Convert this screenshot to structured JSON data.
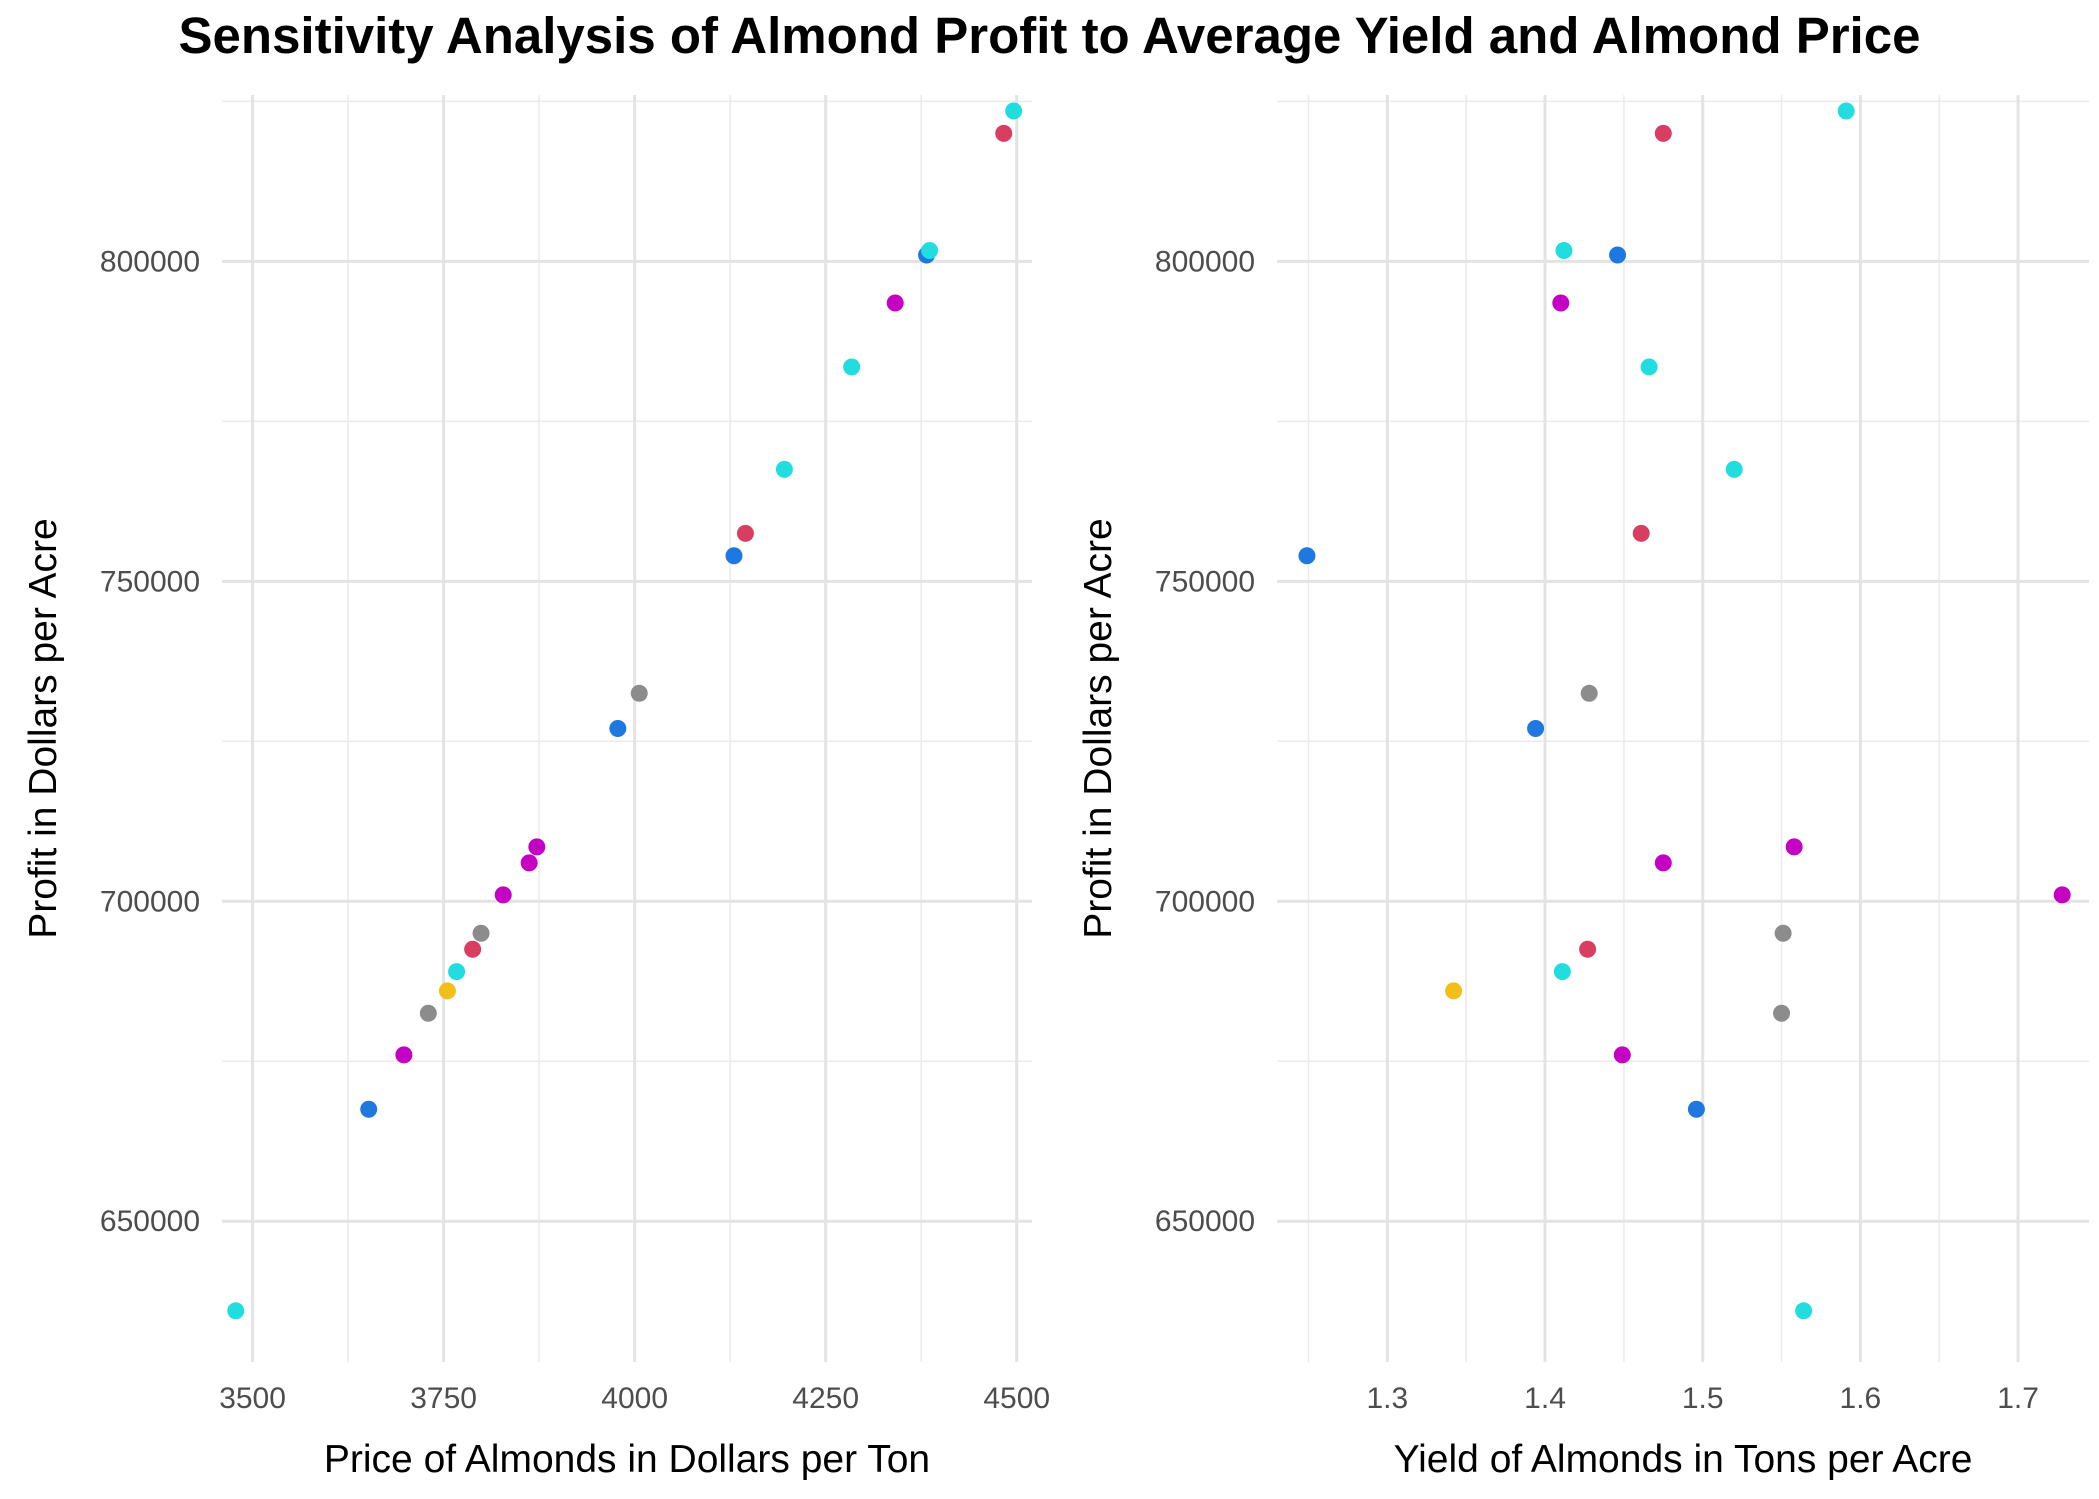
{
  "title": "Sensitivity Analysis of Almond Profit to Average Yield and Almond Price",
  "chart_data": [
    {
      "type": "scatter",
      "panel": "left",
      "xlabel": "Price of Almonds in Dollars per Ton",
      "ylabel": "Profit in Dollars per Acre",
      "xlim": [
        3460,
        4520
      ],
      "ylim": [
        628000,
        826000
      ],
      "xticks": [
        3500,
        3750,
        4000,
        4250,
        4500
      ],
      "yticks": [
        650000,
        700000,
        750000,
        800000
      ],
      "xtick_labels": [
        "3500",
        "3750",
        "4000",
        "4250",
        "4500"
      ],
      "ytick_labels": [
        "650000",
        "700000",
        "750000",
        "800000"
      ],
      "grid": true,
      "legend": "none",
      "points": [
        {
          "x": 3478,
          "y": 636000,
          "color": "#22dde0"
        },
        {
          "x": 3652,
          "y": 667500,
          "color": "#1f78e0"
        },
        {
          "x": 3698,
          "y": 676000,
          "color": "#c400c2"
        },
        {
          "x": 3730,
          "y": 682500,
          "color": "#8c8c8c"
        },
        {
          "x": 3755,
          "y": 686000,
          "color": "#f2be1a"
        },
        {
          "x": 3767,
          "y": 689000,
          "color": "#22dde0"
        },
        {
          "x": 3788,
          "y": 692500,
          "color": "#d83d62"
        },
        {
          "x": 3799,
          "y": 695000,
          "color": "#8c8c8c"
        },
        {
          "x": 3828,
          "y": 701000,
          "color": "#c400c2"
        },
        {
          "x": 3862,
          "y": 706000,
          "color": "#c400c2"
        },
        {
          "x": 3872,
          "y": 708500,
          "color": "#c400c2"
        },
        {
          "x": 3978,
          "y": 727000,
          "color": "#1f78e0"
        },
        {
          "x": 4006,
          "y": 732500,
          "color": "#8c8c8c"
        },
        {
          "x": 4130,
          "y": 754000,
          "color": "#1f78e0"
        },
        {
          "x": 4145,
          "y": 757500,
          "color": "#d83d62"
        },
        {
          "x": 4196,
          "y": 767500,
          "color": "#22dde0"
        },
        {
          "x": 4284,
          "y": 783500,
          "color": "#22dde0"
        },
        {
          "x": 4341,
          "y": 793500,
          "color": "#c400c2"
        },
        {
          "x": 4382,
          "y": 801000,
          "color": "#1f78e0"
        },
        {
          "x": 4386,
          "y": 801700,
          "color": "#22dde0"
        },
        {
          "x": 4483,
          "y": 820000,
          "color": "#d83d62"
        },
        {
          "x": 4496,
          "y": 823500,
          "color": "#22dde0"
        }
      ]
    },
    {
      "type": "scatter",
      "panel": "right",
      "xlabel": "Yield of Almonds in Tons per Acre",
      "ylabel": "Profit in Dollars per Acre",
      "xlim": [
        1.23,
        1.745
      ],
      "ylim": [
        628000,
        826000
      ],
      "xticks": [
        1.3,
        1.4,
        1.5,
        1.6,
        1.7
      ],
      "yticks": [
        650000,
        700000,
        750000,
        800000
      ],
      "xtick_labels": [
        "1.3",
        "1.4",
        "1.5",
        "1.6",
        "1.7"
      ],
      "ytick_labels": [
        "650000",
        "700000",
        "750000",
        "800000"
      ],
      "grid": true,
      "legend": "none",
      "points": [
        {
          "x": 1.564,
          "y": 636000,
          "color": "#22dde0"
        },
        {
          "x": 1.496,
          "y": 667500,
          "color": "#1f78e0"
        },
        {
          "x": 1.449,
          "y": 676000,
          "color": "#c400c2"
        },
        {
          "x": 1.55,
          "y": 682500,
          "color": "#8c8c8c"
        },
        {
          "x": 1.342,
          "y": 686000,
          "color": "#f2be1a"
        },
        {
          "x": 1.411,
          "y": 689000,
          "color": "#22dde0"
        },
        {
          "x": 1.427,
          "y": 692500,
          "color": "#d83d62"
        },
        {
          "x": 1.551,
          "y": 695000,
          "color": "#8c8c8c"
        },
        {
          "x": 1.728,
          "y": 701000,
          "color": "#c400c2"
        },
        {
          "x": 1.475,
          "y": 706000,
          "color": "#c400c2"
        },
        {
          "x": 1.558,
          "y": 708500,
          "color": "#c400c2"
        },
        {
          "x": 1.394,
          "y": 727000,
          "color": "#1f78e0"
        },
        {
          "x": 1.428,
          "y": 732500,
          "color": "#8c8c8c"
        },
        {
          "x": 1.249,
          "y": 754000,
          "color": "#1f78e0"
        },
        {
          "x": 1.461,
          "y": 757500,
          "color": "#d83d62"
        },
        {
          "x": 1.52,
          "y": 767500,
          "color": "#22dde0"
        },
        {
          "x": 1.466,
          "y": 783500,
          "color": "#22dde0"
        },
        {
          "x": 1.41,
          "y": 793500,
          "color": "#c400c2"
        },
        {
          "x": 1.446,
          "y": 801000,
          "color": "#1f78e0"
        },
        {
          "x": 1.412,
          "y": 801700,
          "color": "#22dde0"
        },
        {
          "x": 1.475,
          "y": 820000,
          "color": "#d83d62"
        },
        {
          "x": 1.591,
          "y": 823500,
          "color": "#22dde0"
        }
      ]
    }
  ]
}
